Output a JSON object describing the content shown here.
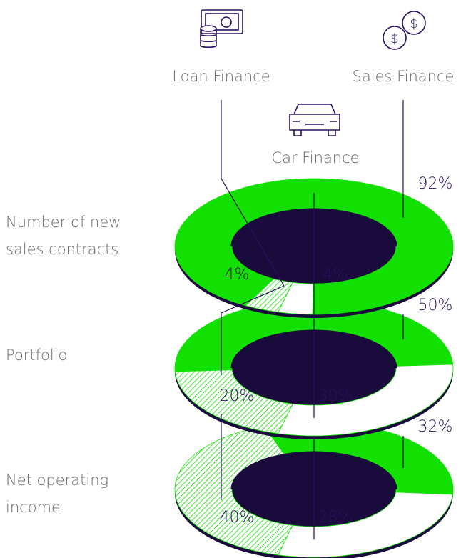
{
  "chart_data": {
    "type": "donut",
    "categories": [
      "Number of new sales contracts",
      "Portfolio",
      "Net operating income"
    ],
    "series": [
      {
        "name": "Sales Finance",
        "color": "#12e000",
        "values": [
          92,
          50,
          32
        ],
        "value_labels": [
          "92%",
          "50%",
          "32%"
        ]
      },
      {
        "name": "Car Finance",
        "color": "#ffffff",
        "values": [
          4,
          30,
          28
        ],
        "value_labels": [
          "4%",
          "30%",
          "28%"
        ]
      },
      {
        "name": "Loan Finance",
        "color": "hatch",
        "values": [
          4,
          20,
          40
        ],
        "value_labels": [
          "4%",
          "20%",
          "40%"
        ]
      }
    ]
  }
}
